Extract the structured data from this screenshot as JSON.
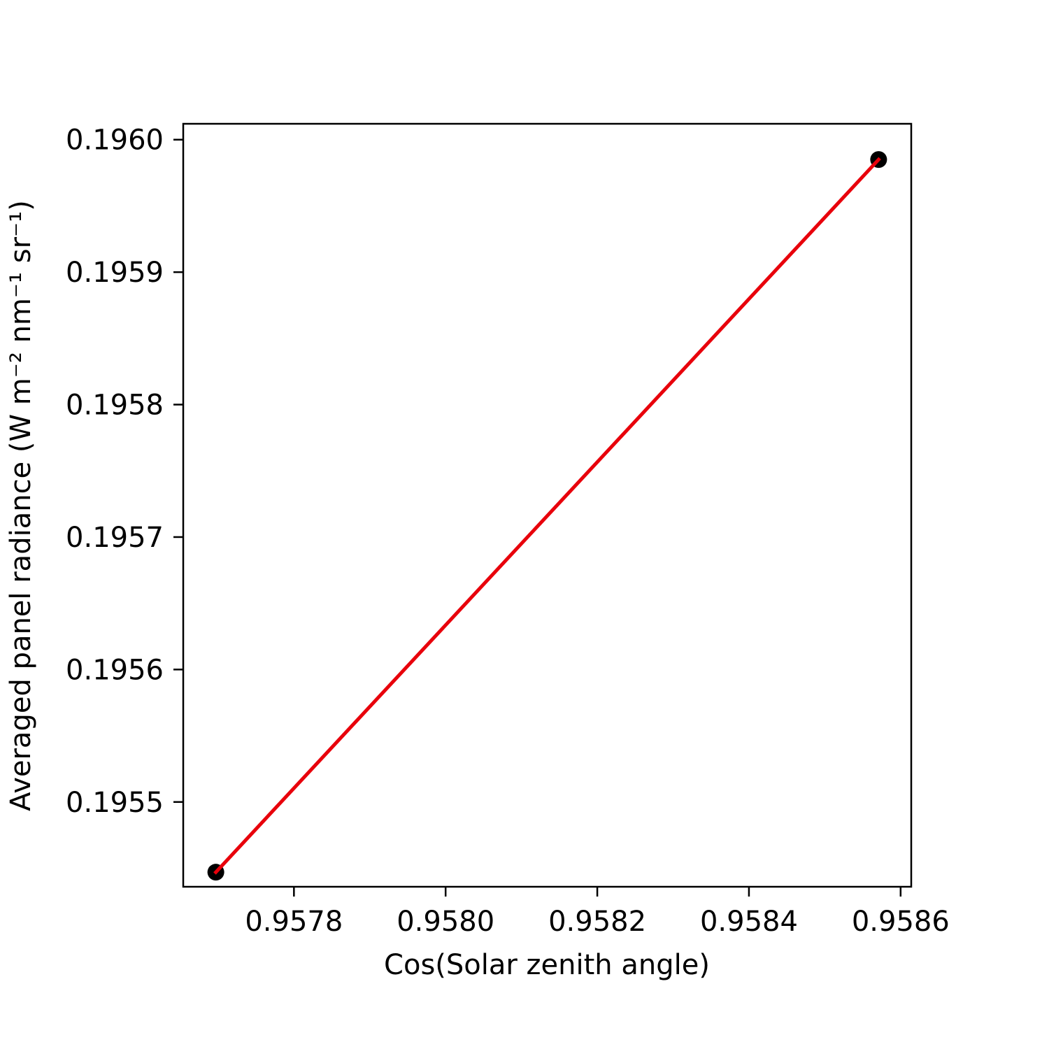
{
  "chart_data": {
    "type": "scatter",
    "xlabel": "Cos(Solar zenith angle)",
    "ylabel": "Averaged panel radiance (W m⁻² nm⁻¹ sr⁻¹)",
    "xlim": [
      0.957654,
      0.958614
    ],
    "ylim": [
      0.195436,
      0.196012
    ],
    "xticks": [
      0.9578,
      0.958,
      0.9582,
      0.9584,
      0.9586
    ],
    "xtick_labels": [
      "0.9578",
      "0.9580",
      "0.9582",
      "0.9584",
      "0.9586"
    ],
    "yticks": [
      0.1955,
      0.1956,
      0.1957,
      0.1958,
      0.1959,
      0.196
    ],
    "ytick_labels": [
      "0.1955",
      "0.1956",
      "0.1957",
      "0.1958",
      "0.1959",
      "0.1960"
    ],
    "grid": false,
    "series": [
      {
        "kind": "points",
        "color": "#000000",
        "x": [
          0.957697,
          0.958571
        ],
        "y": [
          0.195447,
          0.195985
        ]
      },
      {
        "kind": "line",
        "color": "#e8000b",
        "x": [
          0.957697,
          0.958571
        ],
        "y": [
          0.195447,
          0.195985
        ]
      }
    ]
  }
}
